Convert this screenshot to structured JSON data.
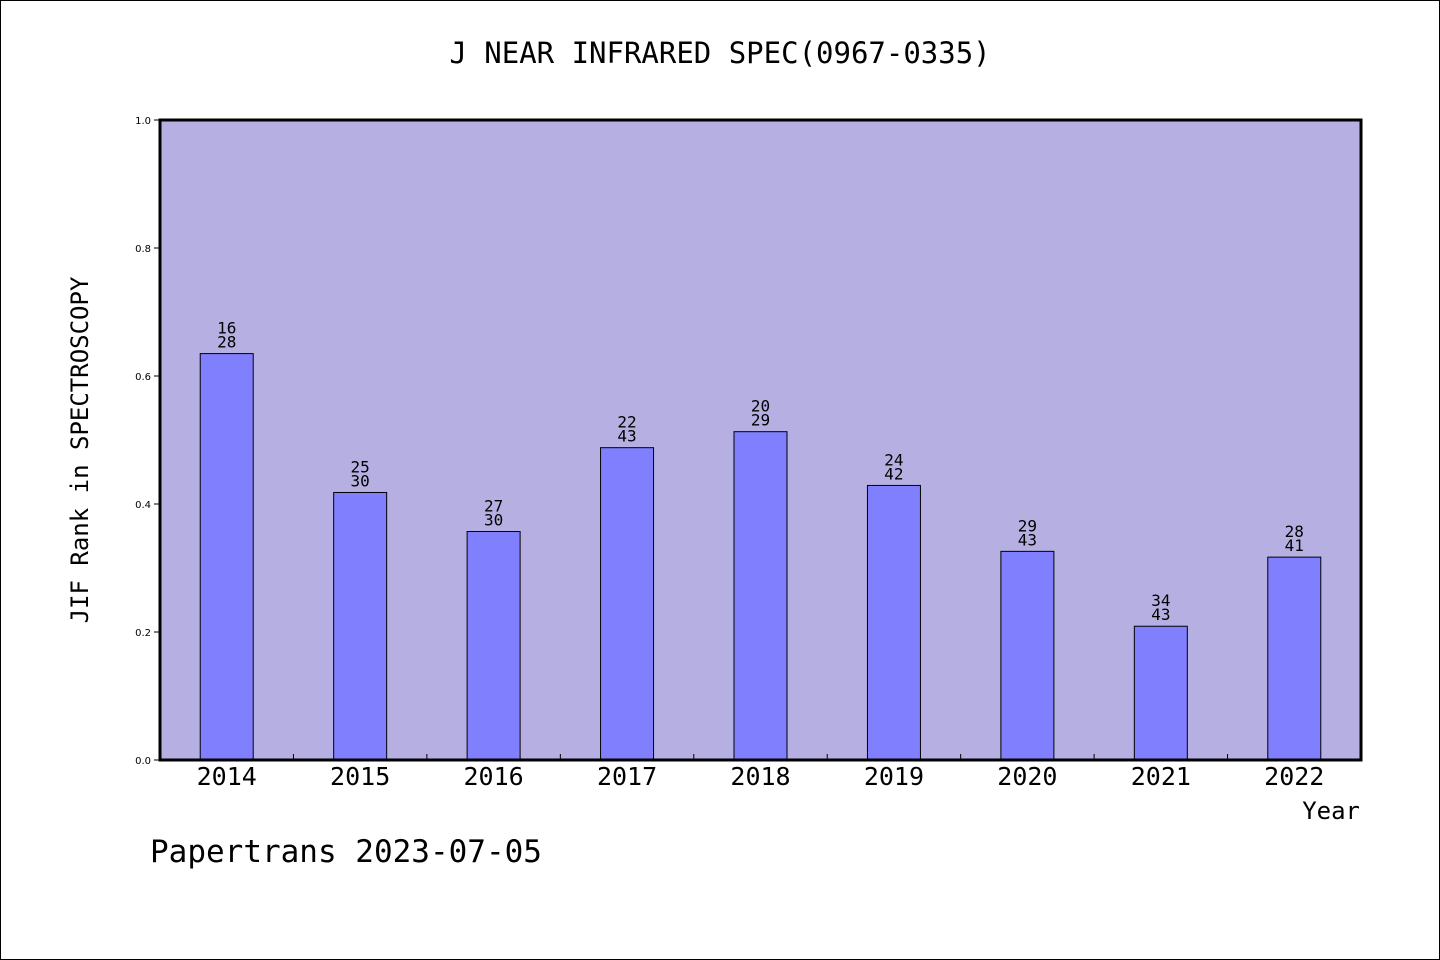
{
  "chart_data": {
    "type": "bar",
    "title": "J NEAR INFRARED SPEC(0967-0335)",
    "xlabel": "Year",
    "ylabel": "JIF Rank in SPECTROSCOPY",
    "ylim": [
      0.0,
      1.0
    ],
    "yticks": [
      "0.0",
      "0.2",
      "0.4",
      "0.6",
      "0.8",
      "1.0"
    ],
    "categories": [
      "2014",
      "2015",
      "2016",
      "2017",
      "2018",
      "2019",
      "2020",
      "2021",
      "2022"
    ],
    "values": [
      0.635,
      0.418,
      0.357,
      0.488,
      0.513,
      0.429,
      0.326,
      0.209,
      0.317
    ],
    "rank_labels": [
      [
        "16",
        "28"
      ],
      [
        "25",
        "30"
      ],
      [
        "27",
        "30"
      ],
      [
        "22",
        "43"
      ],
      [
        "20",
        "29"
      ],
      [
        "24",
        "42"
      ],
      [
        "29",
        "43"
      ],
      [
        "34",
        "43"
      ],
      [
        "28",
        "41"
      ]
    ],
    "grid": false,
    "colors": {
      "plot_background": "#b6b0e2",
      "bar_fill": "#8080ff",
      "bar_stroke": "#000000"
    }
  },
  "footer": {
    "note": "Papertrans 2023-07-05"
  }
}
